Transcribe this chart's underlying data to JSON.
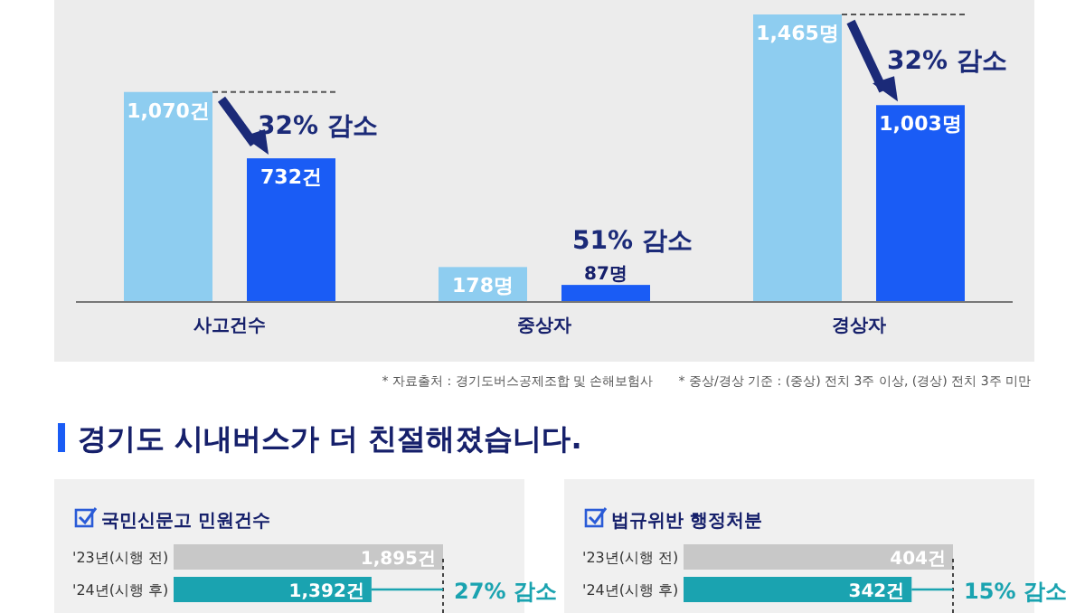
{
  "chart_data": [
    {
      "type": "bar",
      "categories": [
        "사고건수",
        "중상자",
        "경상자"
      ],
      "series": [
        {
          "color": "#8ecdf0",
          "values": [
            1070,
            178,
            1465
          ],
          "value_labels": [
            "1,070건",
            "178명",
            "1,465명"
          ]
        },
        {
          "color": "#1a5cf5",
          "values": [
            732,
            87,
            1003
          ],
          "value_labels": [
            "732건",
            "87명",
            "1,003명"
          ]
        }
      ],
      "annotations": [
        "32% 감소",
        "51% 감소",
        "32% 감소",
        "* 자료출처 : 경기도버스공제조합 및 손해보험사",
        "* 중상/경상 기준 : (중상) 전치 3주 이상, (경상) 전치 3주 미만"
      ]
    },
    {
      "type": "other",
      "title": "경기도 시내버스가 더 친절해졌습니다."
    },
    {
      "type": "bar",
      "orientation": "horizontal",
      "title": "국민신문고 민원건수",
      "categories": [
        "'23년(시행 전)",
        "'24년(시행 후)"
      ],
      "values": [
        1895,
        1392
      ],
      "colors": [
        "#c8c8c8",
        "#1aa3b0"
      ],
      "value_labels": [
        "1,895건",
        "1,392건"
      ],
      "annotations": [
        "27% 감소"
      ]
    },
    {
      "type": "bar",
      "orientation": "horizontal",
      "title": "법규위반 행정처분",
      "categories": [
        "'23년(시행 전)",
        "'24년(시행 후)"
      ],
      "values": [
        404,
        342
      ],
      "colors": [
        "#c8c8c8",
        "#1aa3b0"
      ],
      "value_labels": [
        "404건",
        "342건"
      ],
      "annotations": [
        "15% 감소"
      ]
    }
  ]
}
